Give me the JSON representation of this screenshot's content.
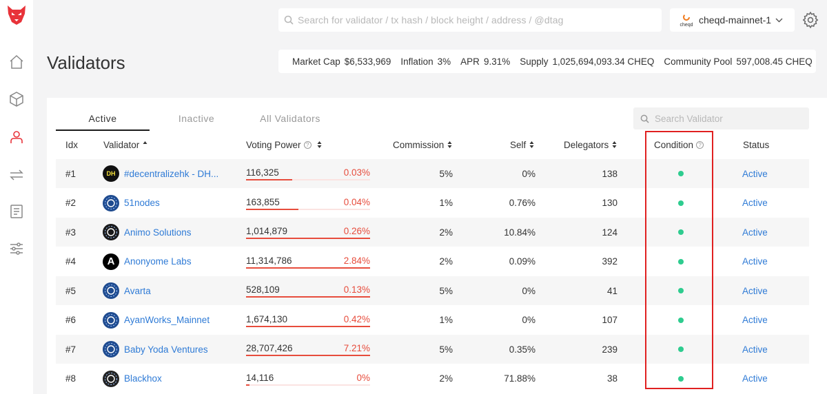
{
  "search": {
    "placeholder": "Search for validator / tx hash / block height / address / @dtag"
  },
  "chain": {
    "name": "cheqd-mainnet-1",
    "logo_text": "cheqd"
  },
  "page": {
    "title": "Validators"
  },
  "stats": [
    {
      "label": "Market Cap",
      "value": "$6,533,969"
    },
    {
      "label": "Inflation",
      "value": "3%"
    },
    {
      "label": "APR",
      "value": "9.31%"
    },
    {
      "label": "Supply",
      "value": "1,025,694,093.34 CHEQ"
    },
    {
      "label": "Community Pool",
      "value": "597,008.45 CHEQ"
    }
  ],
  "tabs": [
    {
      "label": "Active",
      "active": true
    },
    {
      "label": "Inactive",
      "active": false
    },
    {
      "label": "All Validators",
      "active": false
    }
  ],
  "validator_search": {
    "placeholder": "Search Validator"
  },
  "columns": {
    "idx": "Idx",
    "validator": "Validator",
    "voting_power": "Voting Power",
    "commission": "Commission",
    "self": "Self",
    "delegators": "Delegators",
    "condition": "Condition",
    "status": "Status"
  },
  "validators": [
    {
      "idx": "#1",
      "name": "#decentralizehk - DH...",
      "vp": "116,325",
      "vp_pct": "0.03%",
      "vp_fill": 0.37,
      "commission": "5%",
      "self": "0%",
      "delegators": "138",
      "status": "Active",
      "avatar_color": "#111111",
      "avatar_text": "DH"
    },
    {
      "idx": "#2",
      "name": "51nodes",
      "vp": "163,855",
      "vp_pct": "0.04%",
      "vp_fill": 0.42,
      "commission": "1%",
      "self": "0.76%",
      "delegators": "130",
      "status": "Active",
      "avatar_color": "#1f4b8f",
      "avatar_text": ""
    },
    {
      "idx": "#3",
      "name": "Animo Solutions",
      "vp": "1,014,879",
      "vp_pct": "0.26%",
      "vp_fill": 1.0,
      "commission": "2%",
      "self": "10.84%",
      "delegators": "124",
      "status": "Active",
      "avatar_color": "#1a1a1a",
      "avatar_text": ""
    },
    {
      "idx": "#4",
      "name": "Anonyome Labs",
      "vp": "11,314,786",
      "vp_pct": "2.84%",
      "vp_fill": 1.0,
      "commission": "2%",
      "self": "0.09%",
      "delegators": "392",
      "status": "Active",
      "avatar_color": "#000000",
      "avatar_text": "A"
    },
    {
      "idx": "#5",
      "name": "Avarta",
      "vp": "528,109",
      "vp_pct": "0.13%",
      "vp_fill": 1.0,
      "commission": "5%",
      "self": "0%",
      "delegators": "41",
      "status": "Active",
      "avatar_color": "#1f4b8f",
      "avatar_text": ""
    },
    {
      "idx": "#6",
      "name": "AyanWorks_Mainnet",
      "vp": "1,674,130",
      "vp_pct": "0.42%",
      "vp_fill": 1.0,
      "commission": "1%",
      "self": "0%",
      "delegators": "107",
      "status": "Active",
      "avatar_color": "#1f4b8f",
      "avatar_text": ""
    },
    {
      "idx": "#7",
      "name": "Baby Yoda Ventures",
      "vp": "28,707,426",
      "vp_pct": "7.21%",
      "vp_fill": 1.0,
      "commission": "5%",
      "self": "0.35%",
      "delegators": "239",
      "status": "Active",
      "avatar_color": "#1f4b8f",
      "avatar_text": ""
    },
    {
      "idx": "#8",
      "name": "Blackhox",
      "vp": "14,116",
      "vp_pct": "0%",
      "vp_fill": 0.03,
      "commission": "2%",
      "self": "71.88%",
      "delegators": "38",
      "status": "Active",
      "avatar_color": "#222222",
      "avatar_text": ""
    }
  ],
  "colors": {
    "link": "#2f7bd6",
    "voting_power": "#e74c3c",
    "condition_ok": "#2ecc8f",
    "highlight_box": "#e02020",
    "logo": "#e8333a"
  }
}
